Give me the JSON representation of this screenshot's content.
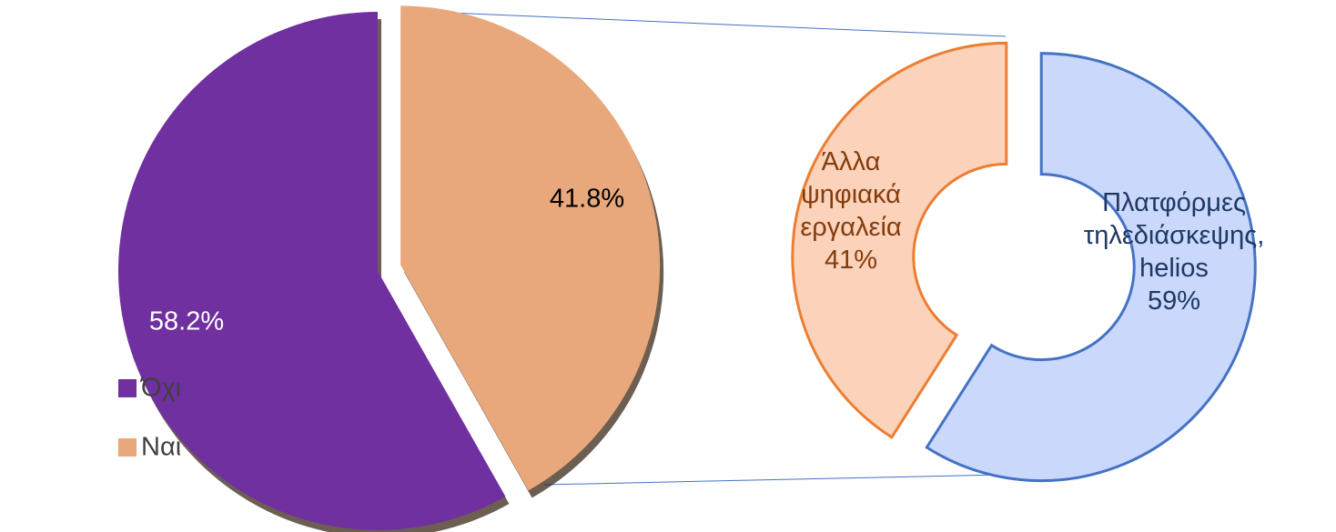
{
  "chart_data": [
    {
      "type": "pie",
      "categories": [
        "Όχι",
        "Ναι"
      ],
      "values": [
        58.2,
        41.8
      ],
      "value_labels": [
        "58.2%",
        "41.8%"
      ],
      "colors": [
        "#7030a0",
        "#e8a87c"
      ],
      "legend": "left"
    },
    {
      "type": "donut",
      "categories": [
        "Άλλα ψηφιακά εργαλεία",
        "Πλατφόρμες τηλεδιάσκεψης, helios"
      ],
      "values": [
        41,
        59
      ],
      "value_labels": [
        "41%",
        "59%"
      ],
      "colors": [
        "#fbd3bb",
        "#c9d8fb"
      ],
      "stroke_colors": [
        "#ed7d31",
        "#4472c4"
      ],
      "label_colors": [
        "#843c0c",
        "#1f3864"
      ]
    }
  ]
}
